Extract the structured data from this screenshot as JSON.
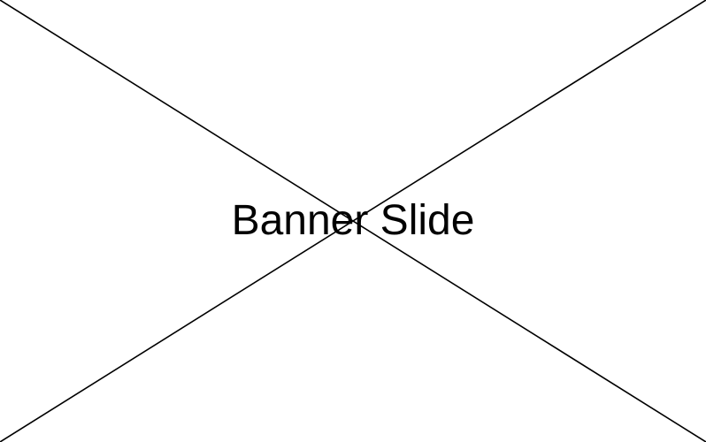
{
  "banner": {
    "label": "Banner Slide",
    "text_color": "#000000",
    "background_color": "#ffffff",
    "line_color": "#000000",
    "placeholder_icon": "x-placeholder-icon"
  }
}
